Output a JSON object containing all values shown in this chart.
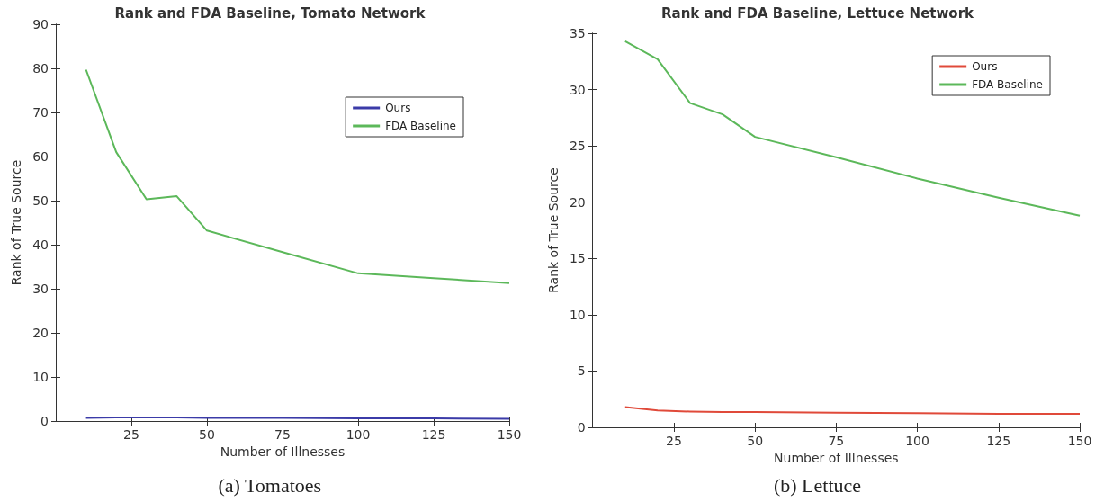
{
  "chart_data": [
    {
      "type": "line",
      "title": "Rank and FDA Baseline, Tomato Network",
      "xlabel": "Number of Illnesses",
      "ylabel": "Rank of True Source",
      "annotations": [
        "(a) Tomatoes"
      ],
      "x": [
        10,
        20,
        30,
        40,
        50,
        75,
        100,
        125,
        150
      ],
      "series": [
        {
          "name": "Ours",
          "color": "#3b3ba8",
          "values": [
            0.7,
            0.8,
            0.8,
            0.8,
            0.7,
            0.7,
            0.6,
            0.6,
            0.5
          ]
        },
        {
          "name": "FDA Baseline",
          "color": "#5cb85a",
          "values": [
            79.7,
            61,
            50.3,
            51,
            43.2,
            38.3,
            33.5,
            32.4,
            31.3
          ]
        }
      ],
      "xlim": [
        0,
        150
      ],
      "xticks": [
        25,
        50,
        75,
        100,
        125,
        150
      ],
      "ylim": [
        0,
        90
      ],
      "yticks": [
        0,
        10,
        20,
        30,
        40,
        50,
        60,
        70,
        80,
        90
      ],
      "grid": false,
      "legend": "top right",
      "marker": "none",
      "line_style": "solid"
    },
    {
      "type": "line",
      "title": "Rank and FDA Baseline, Lettuce Network",
      "xlabel": "Number of Illnesses",
      "ylabel": "Rank of True Source",
      "annotations": [
        "(b) Lettuce"
      ],
      "x": [
        10,
        20,
        30,
        40,
        50,
        75,
        100,
        125,
        150
      ],
      "series": [
        {
          "name": "Ours",
          "color": "#e04a3a",
          "values": [
            1.8,
            1.5,
            1.4,
            1.35,
            1.35,
            1.3,
            1.25,
            1.2,
            1.2
          ]
        },
        {
          "name": "FDA Baseline",
          "color": "#5cb85a",
          "values": [
            34.3,
            32.7,
            28.8,
            27.8,
            25.8,
            24.0,
            22.1,
            20.4,
            18.8
          ]
        }
      ],
      "xlim": [
        0,
        150
      ],
      "xticks": [
        25,
        50,
        75,
        100,
        125,
        150
      ],
      "ylim": [
        0,
        35
      ],
      "yticks": [
        0,
        5,
        10,
        15,
        20,
        25,
        30,
        35
      ],
      "grid": false,
      "legend": "top right",
      "marker": "none",
      "line_style": "solid"
    }
  ]
}
